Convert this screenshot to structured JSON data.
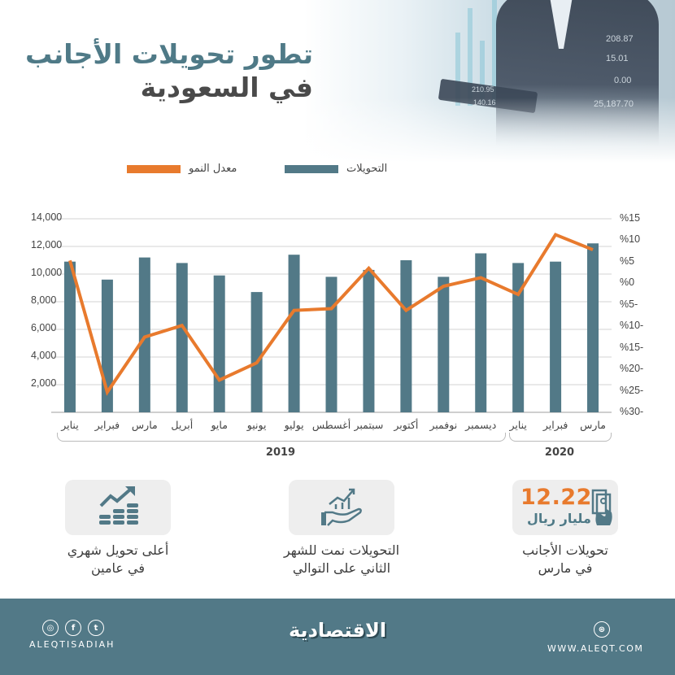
{
  "header": {
    "title_line1": "تطور تحويلات الأجانب",
    "title_line2": "في السعودية",
    "hero_numbers": [
      "208.87",
      "15.01",
      "0.00",
      "25,187.70",
      "210.95",
      "140.16"
    ]
  },
  "legend": {
    "items": [
      {
        "label": "التحويلات",
        "color": "#527987"
      },
      {
        "label": "معدل النمو",
        "color": "#e87a2d"
      }
    ]
  },
  "chart_data": {
    "type": "bar",
    "title": "تطور تحويلات الأجانب في السعودية",
    "xlabel": "",
    "ylabel": "",
    "categories": [
      "يناير",
      "فبراير",
      "مارس",
      "أبريل",
      "مايو",
      "يونيو",
      "يوليو",
      "أغسطس",
      "سبتمبر",
      "أكتوبر",
      "نوفمبر",
      "ديسمبر",
      "يناير",
      "فبراير",
      "مارس"
    ],
    "year_groups": [
      {
        "label": "2019",
        "start": 0,
        "end": 11
      },
      {
        "label": "2020",
        "start": 12,
        "end": 14
      }
    ],
    "series": [
      {
        "name": "التحويلات",
        "type": "bar",
        "axis": "left",
        "color": "#527987",
        "values": [
          10900,
          9600,
          11200,
          10800,
          9900,
          8700,
          11400,
          9800,
          10300,
          11000,
          9800,
          11500,
          10800,
          10900,
          12220
        ]
      },
      {
        "name": "معدل النمو",
        "type": "line",
        "axis": "right",
        "color": "#e87a2d",
        "values": [
          5.3,
          -25.3,
          -12.5,
          -9.8,
          -22.5,
          -18.5,
          -6.3,
          -5.9,
          3.5,
          -6.3,
          -0.7,
          1.3,
          -2.6,
          11.3,
          7.8
        ]
      }
    ],
    "y_left": {
      "ticks": [
        "14,000",
        "12,000",
        "10,000",
        "8,000",
        "6,000",
        "4,000",
        "2,000"
      ],
      "ylim": [
        0,
        14000
      ]
    },
    "y_right": {
      "ticks": [
        "%15",
        "%10",
        "%5",
        "%0",
        "%5-",
        "%10-",
        "%15-",
        "%20-",
        "%25-",
        "%30-"
      ],
      "ylim": [
        -30,
        15
      ]
    },
    "grid": true,
    "legend_position": "top"
  },
  "cards": [
    {
      "value": "12.22",
      "unit": "مليار ريال",
      "caption_line1": "تحويلات الأجانب",
      "caption_line2": "في مارس",
      "icon": "money-hand-icon"
    },
    {
      "caption_line1": "التحويلات نمت للشهر",
      "caption_line2": "الثاني على التوالي",
      "icon": "growth-hand-icon"
    },
    {
      "caption_line1": "أعلى تحويل شهري",
      "caption_line2": "في عامين",
      "icon": "coins-growth-icon"
    }
  ],
  "footer": {
    "handle": "ALEQTISADIAH",
    "logo": "الاقتصادية",
    "url": "WWW.ALEQT.COM",
    "social": [
      "instagram",
      "facebook",
      "twitter"
    ]
  }
}
